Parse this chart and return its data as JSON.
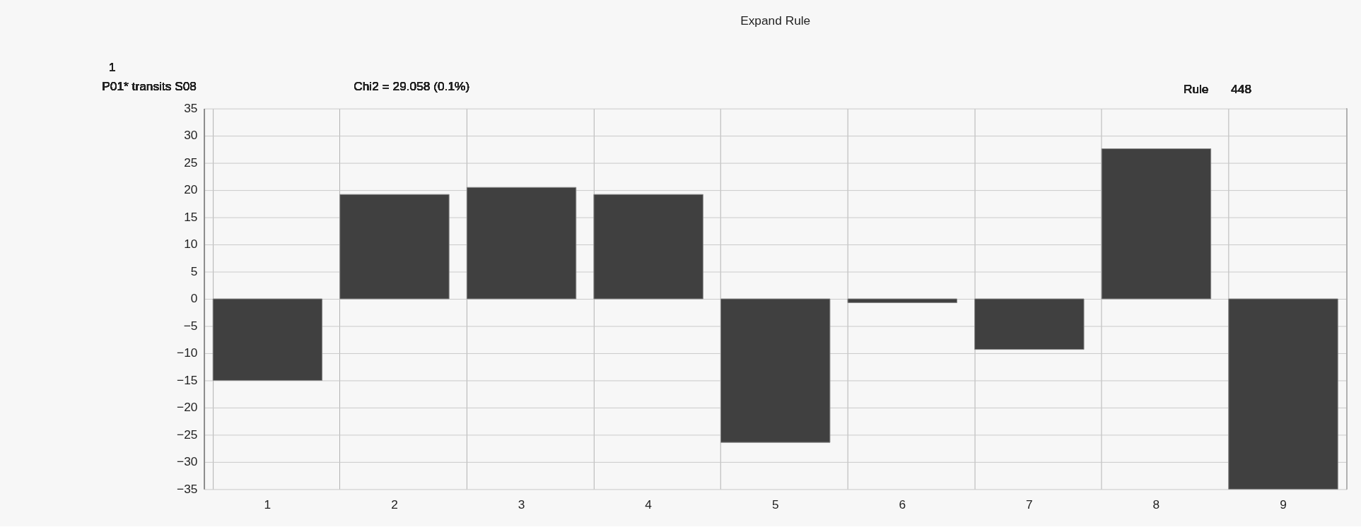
{
  "chart_data": {
    "type": "bar",
    "title": "Expand Rule",
    "annotations": [
      "1",
      "P01* transits S08",
      "Chi2 = 29.058 (0.1%)",
      "Rule",
      "448"
    ],
    "categories": [
      "1",
      "2",
      "3",
      "4",
      "5",
      "6",
      "7",
      "8",
      "9"
    ],
    "values": [
      -15,
      19.2,
      20.5,
      19.2,
      -26.4,
      -0.7,
      -9.3,
      27.6,
      -35
    ],
    "color": "#404040",
    "ylim": [
      -35,
      35
    ],
    "yticks": [
      -35,
      -30,
      -25,
      -20,
      -15,
      -10,
      -5,
      0,
      5,
      10,
      15,
      20,
      25,
      30,
      35
    ],
    "grid": true
  }
}
